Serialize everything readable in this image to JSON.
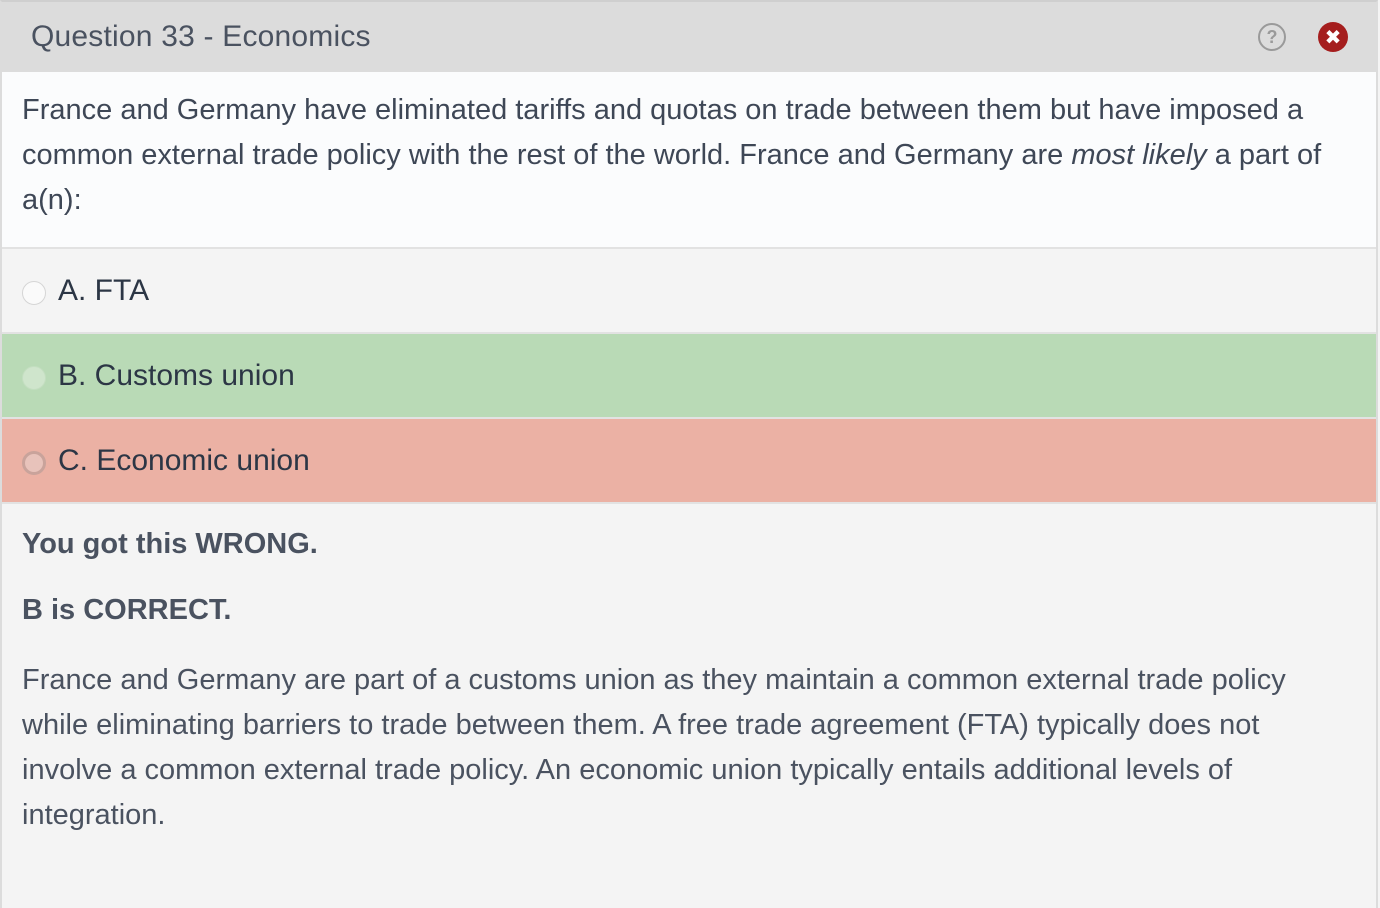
{
  "header": {
    "title": "Question 33 - Economics",
    "help_icon": "?",
    "close_icon": "✖"
  },
  "question": {
    "text_part1": "France and Germany have eliminated tariffs and quotas on trade between them but have imposed a common external trade policy with the rest of the world.  France and Germany are ",
    "text_emphasis": "most likely",
    "text_part2": " a part of a(n):"
  },
  "options": [
    {
      "label": "A. FTA",
      "state": "neutral"
    },
    {
      "label": "B. Customs union",
      "state": "correct"
    },
    {
      "label": "C. Economic union",
      "state": "wrong"
    }
  ],
  "feedback": {
    "result": "You got this WRONG.",
    "correct_answer": "B is CORRECT.",
    "explanation": "France and Germany are part of a customs union as they maintain a common external trade policy while eliminating barriers to trade between them.  A free trade agreement (FTA) typically does not involve a common external trade policy.  An economic union typically entails additional levels of integration."
  },
  "colors": {
    "correct_bg": "#b9dab6",
    "wrong_bg": "#ebb1a4",
    "close_button": "#a51e1e"
  }
}
